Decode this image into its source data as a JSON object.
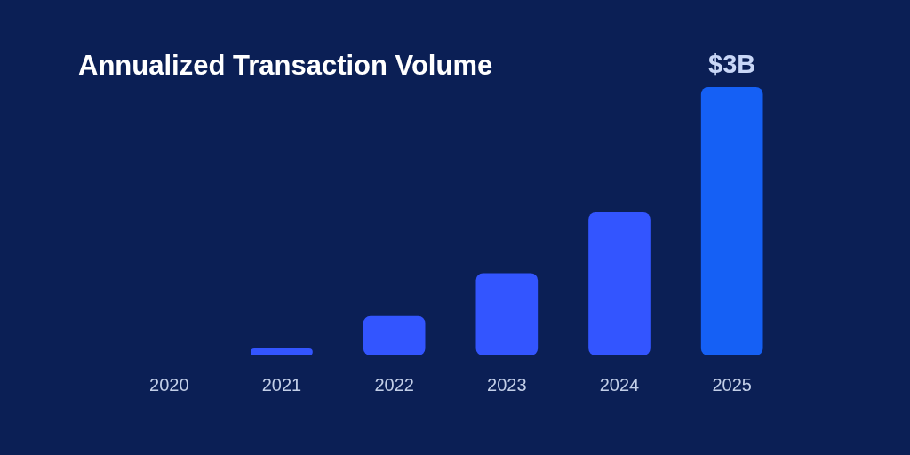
{
  "chart_data": {
    "type": "bar",
    "title": "Annualized Transaction Volume",
    "categories": [
      "2020",
      "2021",
      "2022",
      "2023",
      "2024",
      "2025"
    ],
    "values": [
      0,
      0.08,
      0.44,
      0.92,
      1.6,
      3
    ],
    "colors": [
      "#3355ff",
      "#3355ff",
      "#3355ff",
      "#3355ff",
      "#3355ff",
      "#1560f5"
    ],
    "value_labels": [
      null,
      null,
      null,
      null,
      null,
      "$3B"
    ],
    "tick_labels": "x",
    "grid": false,
    "legend": false
  }
}
